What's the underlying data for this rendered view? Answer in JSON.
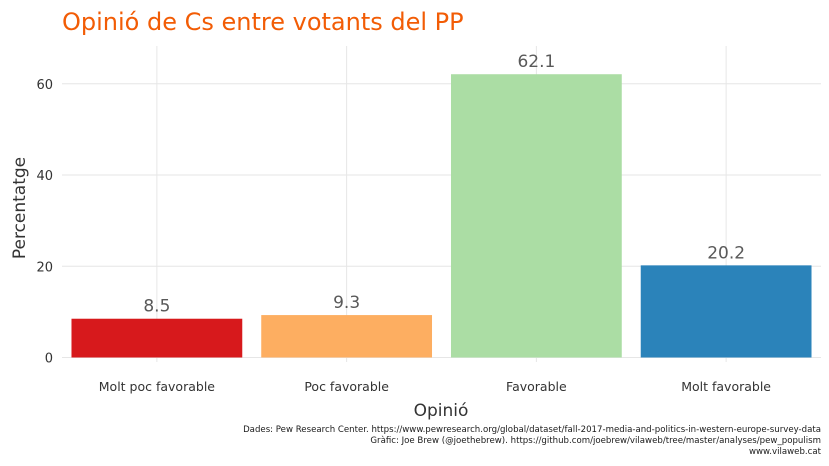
{
  "chart_data": {
    "type": "bar",
    "title": "Opinió de Cs entre votants del PP",
    "xlabel": "Opinió",
    "ylabel": "Percentatge",
    "categories": [
      "Molt poc favorable",
      "Poc favorable",
      "Favorable",
      "Molt favorable"
    ],
    "values": [
      8.5,
      9.3,
      62.1,
      20.2
    ],
    "data_labels": [
      "8.5",
      "9.3",
      "62.1",
      "20.2"
    ],
    "colors": [
      "#d7191c",
      "#fdae61",
      "#abdda4",
      "#2b83ba"
    ],
    "yticks": [
      0,
      20,
      40,
      60
    ],
    "ytick_labels": [
      "0",
      "20",
      "40",
      "60"
    ],
    "ylim": [
      0,
      68.5
    ],
    "grid": true,
    "legend": "none",
    "title_color": "#f25c05"
  },
  "caption": {
    "line1": "Dades: Pew Research Center. https://www.pewresearch.org/global/dataset/fall-2017-media-and-politics-in-western-europe-survey-data",
    "line2": "Gràfic: Joe Brew (@joethebrew). https://github.com/joebrew/vilaweb/tree/master/analyses/pew_populism",
    "line3": "www.vilaweb.cat"
  }
}
